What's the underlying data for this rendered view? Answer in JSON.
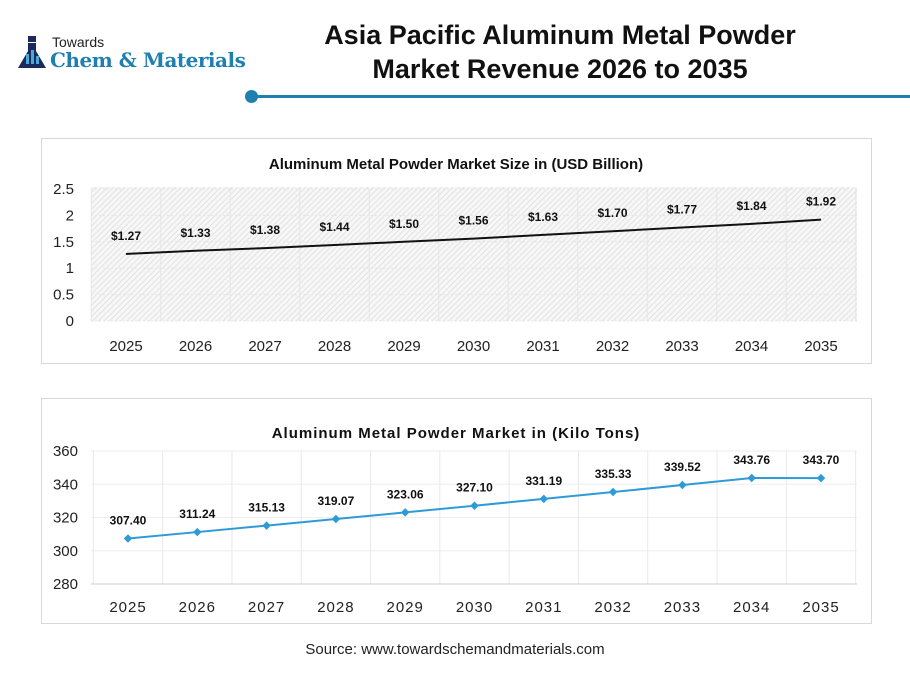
{
  "header": {
    "logo_top": "Towards",
    "logo_main": "Chem & Materials",
    "title_line1": "Asia Pacific Aluminum Metal Powder",
    "title_line2": "Market Revenue 2026 to 2035"
  },
  "source": "Source: www.towardschemandmaterials.com",
  "colors": {
    "accent": "#1f7fb0",
    "line1": "#111111",
    "line2": "#2e9bd6"
  },
  "chart_data": [
    {
      "type": "line",
      "title": "Aluminum Metal Powder Market Size in (USD Billion)",
      "categories": [
        "2025",
        "2026",
        "2027",
        "2028",
        "2029",
        "2030",
        "2031",
        "2032",
        "2033",
        "2034",
        "2035"
      ],
      "values": [
        1.27,
        1.33,
        1.38,
        1.44,
        1.5,
        1.56,
        1.63,
        1.7,
        1.77,
        1.84,
        1.92
      ],
      "labels": [
        "$1.27",
        "$1.33",
        "$1.38",
        "$1.44",
        "$1.50",
        "$1.56",
        "$1.63",
        "$1.70",
        "$1.77",
        "$1.84",
        "$1.92"
      ],
      "ylim": [
        0,
        2.5
      ],
      "yticks": [
        "0",
        "0.5",
        "1",
        "1.5",
        "2",
        "2.5"
      ],
      "xlabel": "",
      "ylabel": ""
    },
    {
      "type": "line",
      "title": "Aluminum Metal Powder Market in (Kilo Tons)",
      "categories": [
        "2025",
        "2026",
        "2027",
        "2028",
        "2029",
        "2030",
        "2031",
        "2032",
        "2033",
        "2034",
        "2035"
      ],
      "values": [
        307.4,
        311.24,
        315.13,
        319.07,
        323.06,
        327.1,
        331.19,
        335.33,
        339.52,
        343.76,
        343.7
      ],
      "labels": [
        "307.40",
        "311.24",
        "315.13",
        "319.07",
        "323.06",
        "327.10",
        "331.19",
        "335.33",
        "339.52",
        "343.76",
        "343.70"
      ],
      "ylim": [
        280,
        360
      ],
      "yticks": [
        "280",
        "300",
        "320",
        "340",
        "360"
      ],
      "xlabel": "",
      "ylabel": ""
    }
  ]
}
